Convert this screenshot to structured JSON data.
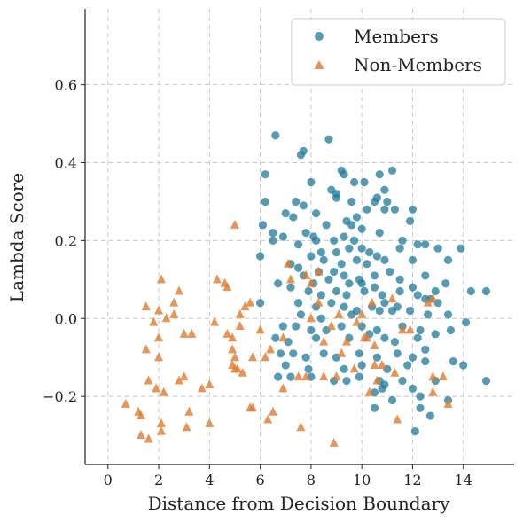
{
  "chart_data": {
    "type": "scatter",
    "title": "",
    "xlabel": "Distance from Decision Boundary",
    "ylabel": "Lambda Score",
    "xlim": [
      -0.9,
      16.0
    ],
    "ylim": [
      -0.375,
      0.795
    ],
    "xticks": [
      0,
      2,
      4,
      6,
      8,
      10,
      12,
      14
    ],
    "yticks": [
      -0.2,
      0.0,
      0.2,
      0.4,
      0.6
    ],
    "ytick_labels": [
      "−0.2",
      "0.0",
      "0.2",
      "0.4",
      "0.6"
    ],
    "grid": true,
    "grid_style": "dashed",
    "legend_position": "top-right",
    "series": [
      {
        "name": "Members",
        "marker": "circle",
        "color": "#1f7a99",
        "points": [
          [
            6.6,
            0.47
          ],
          [
            8.7,
            0.46
          ],
          [
            7.7,
            0.43
          ],
          [
            7.6,
            0.42
          ],
          [
            9.2,
            0.38
          ],
          [
            11.2,
            0.38
          ],
          [
            9.3,
            0.37
          ],
          [
            10.7,
            0.37
          ],
          [
            6.2,
            0.37
          ],
          [
            8.0,
            0.35
          ],
          [
            9.7,
            0.35
          ],
          [
            10.1,
            0.35
          ],
          [
            8.8,
            0.33
          ],
          [
            10.9,
            0.33
          ],
          [
            9.0,
            0.32
          ],
          [
            6.2,
            0.3
          ],
          [
            7.4,
            0.3
          ],
          [
            7.7,
            0.29
          ],
          [
            9.0,
            0.31
          ],
          [
            9.6,
            0.3
          ],
          [
            10.5,
            0.3
          ],
          [
            11.0,
            0.3
          ],
          [
            10.6,
            0.31
          ],
          [
            10.2,
            0.28
          ],
          [
            11.3,
            0.28
          ],
          [
            12.0,
            0.28
          ],
          [
            7.0,
            0.27
          ],
          [
            7.3,
            0.26
          ],
          [
            9.8,
            0.26
          ],
          [
            9.4,
            0.25
          ],
          [
            10.9,
            0.28
          ],
          [
            11.9,
            0.25
          ],
          [
            8.2,
            0.27
          ],
          [
            8.6,
            0.24
          ],
          [
            6.1,
            0.24
          ],
          [
            7.8,
            0.22
          ],
          [
            8.1,
            0.21
          ],
          [
            9.6,
            0.24
          ],
          [
            10.0,
            0.23
          ],
          [
            6.5,
            0.22
          ],
          [
            6.5,
            0.2
          ],
          [
            6.9,
            0.21
          ],
          [
            8.2,
            0.2
          ],
          [
            8.9,
            0.2
          ],
          [
            9.3,
            0.21
          ],
          [
            9.7,
            0.2
          ],
          [
            10.7,
            0.22
          ],
          [
            11.6,
            0.2
          ],
          [
            12.2,
            0.19
          ],
          [
            11.5,
            0.18
          ],
          [
            12.5,
            0.19
          ],
          [
            13.0,
            0.18
          ],
          [
            7.5,
            0.19
          ],
          [
            8.4,
            0.17
          ],
          [
            9.0,
            0.17
          ],
          [
            9.5,
            0.18
          ],
          [
            10.0,
            0.18
          ],
          [
            10.3,
            0.17
          ],
          [
            10.6,
            0.16
          ],
          [
            10.9,
            0.15
          ],
          [
            8.0,
            0.16
          ],
          [
            8.5,
            0.15
          ],
          [
            9.2,
            0.14
          ],
          [
            9.8,
            0.15
          ],
          [
            10.2,
            0.14
          ],
          [
            13.9,
            0.18
          ],
          [
            13.4,
            0.15
          ],
          [
            12.0,
            0.15
          ],
          [
            6.0,
            0.16
          ],
          [
            7.2,
            0.14
          ],
          [
            7.5,
            0.13
          ],
          [
            8.3,
            0.12
          ],
          [
            8.9,
            0.12
          ],
          [
            9.3,
            0.11
          ],
          [
            9.9,
            0.1
          ],
          [
            10.5,
            0.11
          ],
          [
            11.1,
            0.12
          ],
          [
            7.7,
            0.11
          ],
          [
            8.1,
            0.09
          ],
          [
            8.7,
            0.1
          ],
          [
            9.5,
            0.09
          ],
          [
            10.0,
            0.09
          ],
          [
            10.5,
            0.08
          ],
          [
            11.5,
            0.1
          ],
          [
            12.5,
            0.11
          ],
          [
            12.0,
            0.08
          ],
          [
            13.3,
            0.09
          ],
          [
            6.7,
            0.09
          ],
          [
            7.2,
            0.08
          ],
          [
            7.9,
            0.07
          ],
          [
            8.4,
            0.06
          ],
          [
            9.0,
            0.07
          ],
          [
            9.4,
            0.06
          ],
          [
            10.1,
            0.07
          ],
          [
            10.8,
            0.06
          ],
          [
            11.5,
            0.07
          ],
          [
            12.2,
            0.06
          ],
          [
            12.9,
            0.07
          ],
          [
            14.3,
            0.07
          ],
          [
            14.9,
            0.07
          ],
          [
            6.0,
            0.04
          ],
          [
            7.5,
            0.04
          ],
          [
            8.2,
            0.03
          ],
          [
            8.8,
            0.04
          ],
          [
            9.3,
            0.03
          ],
          [
            9.8,
            0.02
          ],
          [
            10.4,
            0.03
          ],
          [
            10.9,
            0.04
          ],
          [
            11.4,
            0.03
          ],
          [
            11.9,
            0.02
          ],
          [
            12.5,
            0.05
          ],
          [
            12.7,
            0.05
          ],
          [
            13.0,
            0.04
          ],
          [
            7.6,
            0.01
          ],
          [
            8.4,
            0.0
          ],
          [
            9.6,
            0.01
          ],
          [
            10.7,
            0.02
          ],
          [
            11.2,
            0.02
          ],
          [
            12.6,
            0.01
          ],
          [
            13.4,
            0.01
          ],
          [
            14.1,
            -0.01
          ],
          [
            6.9,
            -0.02
          ],
          [
            7.4,
            -0.02
          ],
          [
            8.0,
            -0.03
          ],
          [
            8.6,
            -0.03
          ],
          [
            9.2,
            -0.02
          ],
          [
            10.0,
            -0.02
          ],
          [
            10.6,
            -0.03
          ],
          [
            11.6,
            -0.02
          ],
          [
            12.3,
            -0.03
          ],
          [
            12.9,
            -0.04
          ],
          [
            13.5,
            -0.03
          ],
          [
            6.6,
            -0.05
          ],
          [
            7.1,
            -0.06
          ],
          [
            8.2,
            -0.05
          ],
          [
            9.5,
            -0.05
          ],
          [
            10.3,
            -0.04
          ],
          [
            10.9,
            -0.05
          ],
          [
            11.3,
            -0.06
          ],
          [
            12.2,
            -0.05
          ],
          [
            12.5,
            -0.08
          ],
          [
            6.8,
            -0.09
          ],
          [
            7.3,
            -0.09
          ],
          [
            7.8,
            -0.1
          ],
          [
            8.5,
            -0.09
          ],
          [
            9.0,
            -0.1
          ],
          [
            9.9,
            -0.09
          ],
          [
            10.6,
            -0.1
          ],
          [
            11.4,
            -0.09
          ],
          [
            12.0,
            -0.1
          ],
          [
            12.5,
            -0.11
          ],
          [
            13.6,
            -0.11
          ],
          [
            7.0,
            -0.12
          ],
          [
            7.9,
            -0.13
          ],
          [
            9.3,
            -0.13
          ],
          [
            10.0,
            -0.12
          ],
          [
            11.0,
            -0.13
          ],
          [
            11.8,
            -0.12
          ],
          [
            14.0,
            -0.12
          ],
          [
            6.7,
            -0.15
          ],
          [
            7.2,
            -0.15
          ],
          [
            8.0,
            -0.15
          ],
          [
            8.9,
            -0.16
          ],
          [
            9.4,
            -0.16
          ],
          [
            9.9,
            -0.15
          ],
          [
            10.7,
            -0.16
          ],
          [
            11.6,
            -0.16
          ],
          [
            12.9,
            -0.16
          ],
          [
            14.9,
            -0.16
          ],
          [
            10.9,
            -0.17
          ],
          [
            10.8,
            -0.18
          ],
          [
            12.0,
            -0.18
          ],
          [
            10.5,
            -0.19
          ],
          [
            11.2,
            -0.21
          ],
          [
            12.3,
            -0.2
          ],
          [
            13.4,
            -0.21
          ],
          [
            10.5,
            -0.23
          ],
          [
            12.3,
            -0.23
          ],
          [
            12.7,
            -0.25
          ],
          [
            12.1,
            -0.29
          ]
        ]
      },
      {
        "name": "Non-Members",
        "marker": "triangle",
        "color": "#e07b30",
        "points": [
          [
            5.0,
            0.24
          ],
          [
            7.1,
            0.14
          ],
          [
            7.2,
            0.1
          ],
          [
            7.8,
            0.11
          ],
          [
            8.0,
            0.09
          ],
          [
            8.3,
            0.12
          ],
          [
            2.1,
            0.1
          ],
          [
            4.3,
            0.1
          ],
          [
            4.6,
            0.09
          ],
          [
            4.7,
            0.08
          ],
          [
            2.8,
            0.07
          ],
          [
            2.6,
            0.04
          ],
          [
            2.0,
            0.02
          ],
          [
            2.6,
            0.01
          ],
          [
            2.3,
            0.0
          ],
          [
            5.2,
            0.01
          ],
          [
            5.4,
            0.03
          ],
          [
            5.6,
            0.04
          ],
          [
            1.5,
            0.03
          ],
          [
            1.8,
            -0.01
          ],
          [
            4.2,
            -0.01
          ],
          [
            5.2,
            -0.02
          ],
          [
            6.0,
            -0.03
          ],
          [
            4.7,
            -0.04
          ],
          [
            4.9,
            -0.05
          ],
          [
            6.9,
            -0.05
          ],
          [
            3.0,
            -0.04
          ],
          [
            3.3,
            -0.04
          ],
          [
            2.0,
            -0.05
          ],
          [
            1.5,
            -0.08
          ],
          [
            4.9,
            -0.08
          ],
          [
            5.0,
            -0.1
          ],
          [
            5.7,
            -0.1
          ],
          [
            6.2,
            -0.1
          ],
          [
            6.4,
            -0.08
          ],
          [
            2.0,
            -0.1
          ],
          [
            4.9,
            -0.12
          ],
          [
            5.0,
            -0.13
          ],
          [
            5.1,
            -0.13
          ],
          [
            5.3,
            -0.14
          ],
          [
            2.8,
            -0.16
          ],
          [
            3.0,
            -0.15
          ],
          [
            1.6,
            -0.16
          ],
          [
            1.9,
            -0.18
          ],
          [
            2.2,
            -0.19
          ],
          [
            3.7,
            -0.18
          ],
          [
            4.0,
            -0.17
          ],
          [
            6.9,
            -0.18
          ],
          [
            7.5,
            -0.15
          ],
          [
            7.8,
            -0.15
          ],
          [
            8.5,
            -0.15
          ],
          [
            9.0,
            -0.15
          ],
          [
            0.7,
            -0.22
          ],
          [
            1.2,
            -0.24
          ],
          [
            1.3,
            -0.25
          ],
          [
            5.7,
            -0.23
          ],
          [
            5.6,
            -0.23
          ],
          [
            6.5,
            -0.24
          ],
          [
            6.3,
            -0.26
          ],
          [
            3.2,
            -0.24
          ],
          [
            2.1,
            -0.27
          ],
          [
            3.1,
            -0.28
          ],
          [
            4.0,
            -0.27
          ],
          [
            7.6,
            -0.28
          ],
          [
            2.1,
            -0.29
          ],
          [
            1.3,
            -0.3
          ],
          [
            1.6,
            -0.31
          ],
          [
            8.9,
            -0.32
          ],
          [
            11.4,
            -0.26
          ],
          [
            12.8,
            -0.15
          ],
          [
            13.2,
            -0.15
          ],
          [
            12.8,
            -0.19
          ],
          [
            13.4,
            -0.22
          ],
          [
            12.6,
            0.04
          ],
          [
            12.8,
            0.05
          ],
          [
            11.2,
            0.05
          ],
          [
            10.4,
            0.04
          ],
          [
            10.0,
            0.01
          ],
          [
            9.1,
            0.01
          ],
          [
            9.8,
            -0.01
          ],
          [
            8.8,
            -0.02
          ],
          [
            8.0,
            0.0
          ],
          [
            8.5,
            -0.06
          ],
          [
            9.4,
            -0.06
          ],
          [
            10.2,
            -0.05
          ],
          [
            10.1,
            -0.05
          ],
          [
            11.6,
            -0.03
          ],
          [
            11.9,
            -0.03
          ],
          [
            9.2,
            -0.09
          ],
          [
            9.7,
            -0.13
          ],
          [
            10.5,
            -0.12
          ],
          [
            10.8,
            -0.12
          ],
          [
            11.3,
            -0.14
          ],
          [
            10.6,
            -0.16
          ],
          [
            10.3,
            -0.19
          ],
          [
            8.3,
            0.04
          ],
          [
            10.5,
            -0.07
          ]
        ]
      }
    ]
  }
}
